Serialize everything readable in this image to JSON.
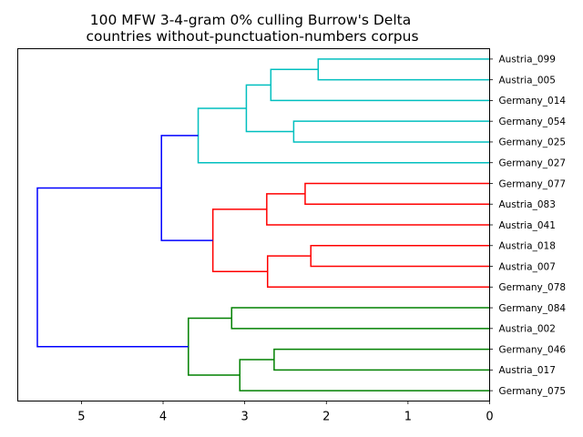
{
  "chart_data": {
    "type": "dendrogram",
    "title": "100 MFW 3-4-gram 0% culling Burrow's Delta",
    "subtitle": "countries without-punctuation-numbers corpus",
    "xlabel": "",
    "ylabel": "",
    "xlim": [
      5.78,
      0
    ],
    "x_ticks": [
      "5",
      "4",
      "3",
      "2",
      "1",
      "0"
    ],
    "x_tick_values": [
      5,
      4,
      3,
      2,
      1,
      0
    ],
    "grid": false,
    "leaves": [
      "Austria_099",
      "Austria_005",
      "Germany_014",
      "Germany_054",
      "Germany_025",
      "Germany_027",
      "Germany_077",
      "Austria_083",
      "Austria_041",
      "Austria_018",
      "Austria_007",
      "Germany_078",
      "Germany_084",
      "Austria_002",
      "Germany_046",
      "Austria_017",
      "Germany_075"
    ],
    "merges": [
      {
        "a": "L0",
        "b": "L1",
        "height": 2.1,
        "color": "#00bfbf"
      },
      {
        "a": "M0",
        "b": "L2",
        "height": 2.68,
        "color": "#00bfbf"
      },
      {
        "a": "L3",
        "b": "L4",
        "height": 2.4,
        "color": "#00bfbf"
      },
      {
        "a": "M1",
        "b": "M2",
        "height": 2.98,
        "color": "#00bfbf"
      },
      {
        "a": "M3",
        "b": "L5",
        "height": 3.57,
        "color": "#00bfbf"
      },
      {
        "a": "L6",
        "b": "L7",
        "height": 2.26,
        "color": "#ff0000"
      },
      {
        "a": "M5",
        "b": "L8",
        "height": 2.73,
        "color": "#ff0000"
      },
      {
        "a": "L9",
        "b": "L10",
        "height": 2.19,
        "color": "#ff0000"
      },
      {
        "a": "M7",
        "b": "L11",
        "height": 2.72,
        "color": "#ff0000"
      },
      {
        "a": "M6",
        "b": "M8",
        "height": 3.39,
        "color": "#ff0000"
      },
      {
        "a": "M4",
        "b": "M9",
        "height": 4.02,
        "color": "#0000ff"
      },
      {
        "a": "L12",
        "b": "L13",
        "height": 3.16,
        "color": "#008000"
      },
      {
        "a": "L14",
        "b": "L15",
        "height": 2.64,
        "color": "#008000"
      },
      {
        "a": "M12",
        "b": "L16",
        "height": 3.06,
        "color": "#008000"
      },
      {
        "a": "M11",
        "b": "M13",
        "height": 3.69,
        "color": "#008000"
      },
      {
        "a": "M10",
        "b": "M14",
        "height": 5.54,
        "color": "#0000ff"
      }
    ]
  }
}
